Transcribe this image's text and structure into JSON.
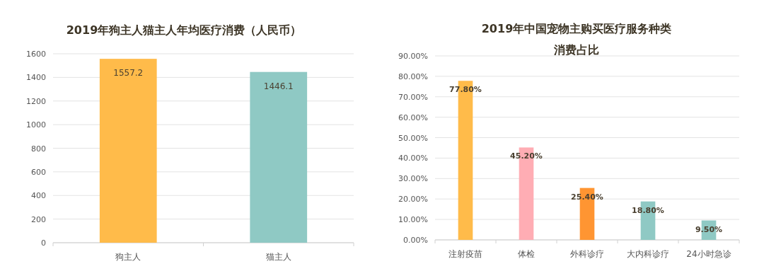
{
  "chart_data": [
    {
      "type": "bar",
      "title": "2019年狗主人猫主人年均医疗消费（人民币）",
      "categories": [
        "狗主人",
        "猫主人"
      ],
      "values": [
        1557.2,
        1446.1
      ],
      "colors": [
        "#ffbb4a",
        "#8fc9c4"
      ],
      "ylim": [
        0,
        1600
      ],
      "yticks": [
        0,
        200,
        400,
        600,
        800,
        1000,
        1200,
        1400,
        1600
      ],
      "grid": "y",
      "data_labels": true
    },
    {
      "type": "bar",
      "title": "2019年中国宠物主购买医疗服务种类",
      "subtitle": "消费占比",
      "categories": [
        "注射疫苗",
        "体检",
        "外科诊疗",
        "大内科诊疗",
        "24小时急诊"
      ],
      "values": [
        77.8,
        45.2,
        25.4,
        18.8,
        9.5
      ],
      "colors": [
        "#ffbb4a",
        "#ffadb4",
        "#ff9532",
        "#8fc9c4",
        "#8fc9c4"
      ],
      "value_labels": [
        "77.80%",
        "45.20%",
        "25.40%",
        "18.80%",
        "9.50%"
      ],
      "ylim": [
        0,
        90
      ],
      "yticks": [
        {
          "value": 0,
          "label": "0.00%"
        },
        {
          "value": 10,
          "label": "10.00%"
        },
        {
          "value": 20,
          "label": "20.00%"
        },
        {
          "value": 30,
          "label": "30.00%"
        },
        {
          "value": 40,
          "label": "40.00%"
        },
        {
          "value": 50,
          "label": "50.00%"
        },
        {
          "value": 60,
          "label": "60.00%"
        },
        {
          "value": 70,
          "label": "70.00%"
        },
        {
          "value": 80,
          "label": "80.00%"
        },
        {
          "value": 90,
          "label": "90.00%"
        }
      ],
      "grid": "y"
    }
  ]
}
